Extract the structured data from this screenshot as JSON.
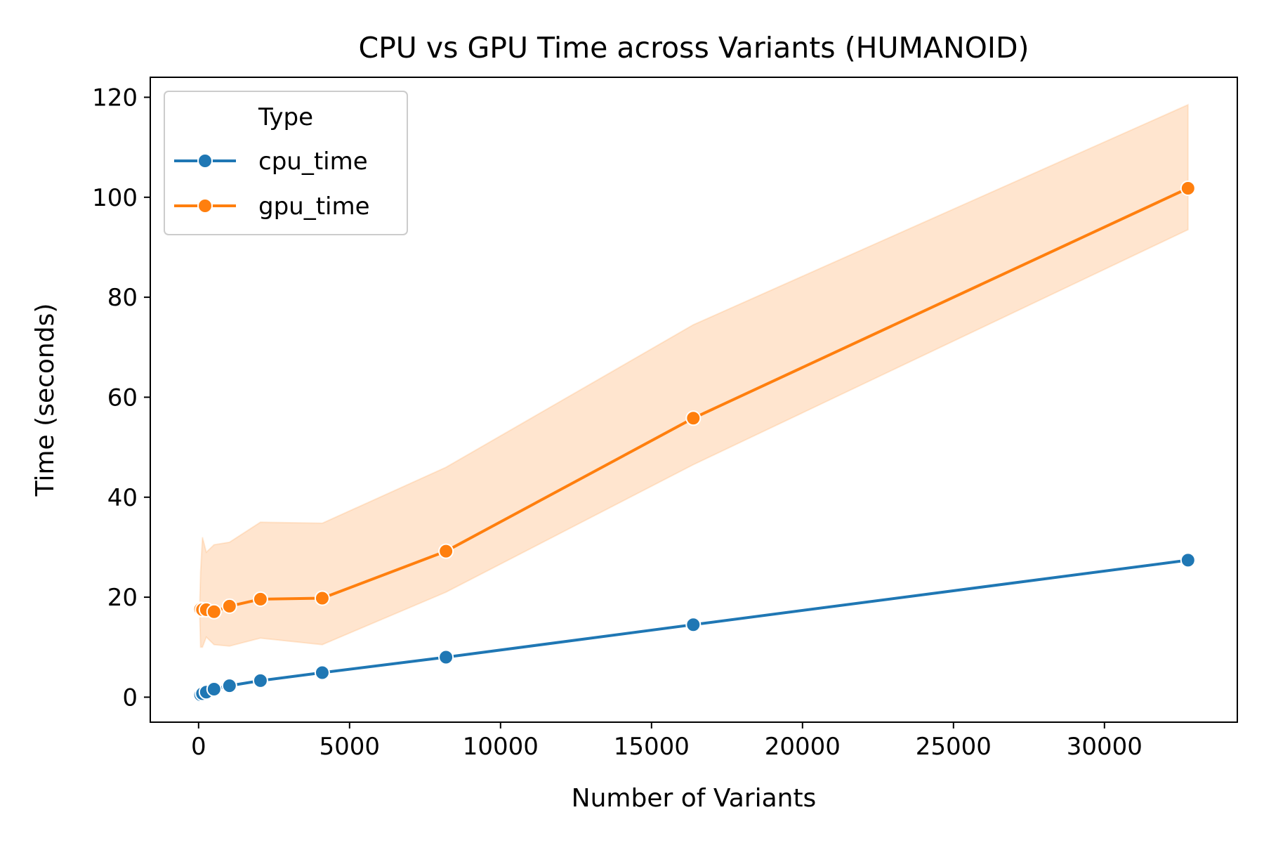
{
  "chart_data": {
    "type": "line",
    "title": "CPU vs GPU Time across Variants (HUMANOID)",
    "xlabel": "Number of Variants",
    "ylabel": "Time (seconds)",
    "xlim": [
      -1600,
      34400
    ],
    "ylim": [
      -5,
      124
    ],
    "xticks": [
      0,
      5000,
      10000,
      15000,
      20000,
      25000,
      30000
    ],
    "yticks": [
      0,
      20,
      40,
      60,
      80,
      100,
      120
    ],
    "grid": false,
    "legend": {
      "title": "Type",
      "placement": "top-left"
    },
    "series": [
      {
        "name": "cpu_time",
        "color": "#1f77b4",
        "marker": "circle",
        "x": [
          32,
          64,
          128,
          256,
          512,
          1024,
          2048,
          4096,
          8192,
          16384,
          32768
        ],
        "y": [
          0.4,
          0.5,
          0.7,
          1.0,
          1.6,
          2.3,
          3.3,
          4.9,
          8.0,
          14.5,
          27.4
        ]
      },
      {
        "name": "gpu_time",
        "color": "#ff7f0e",
        "marker": "circle",
        "x": [
          32,
          64,
          128,
          256,
          512,
          1024,
          2048,
          4096,
          8192,
          16384,
          32768
        ],
        "y": [
          17.5,
          17.6,
          17.5,
          17.5,
          17.1,
          18.2,
          19.6,
          19.8,
          29.2,
          55.8,
          101.8
        ],
        "ci_lower": [
          17.5,
          10.0,
          10.0,
          12.0,
          10.5,
          10.2,
          11.8,
          10.5,
          21.0,
          46.5,
          93.5
        ],
        "ci_upper": [
          17.5,
          25.0,
          32.0,
          29.0,
          30.5,
          31.0,
          35.0,
          34.8,
          46.0,
          74.5,
          118.5
        ]
      }
    ]
  }
}
